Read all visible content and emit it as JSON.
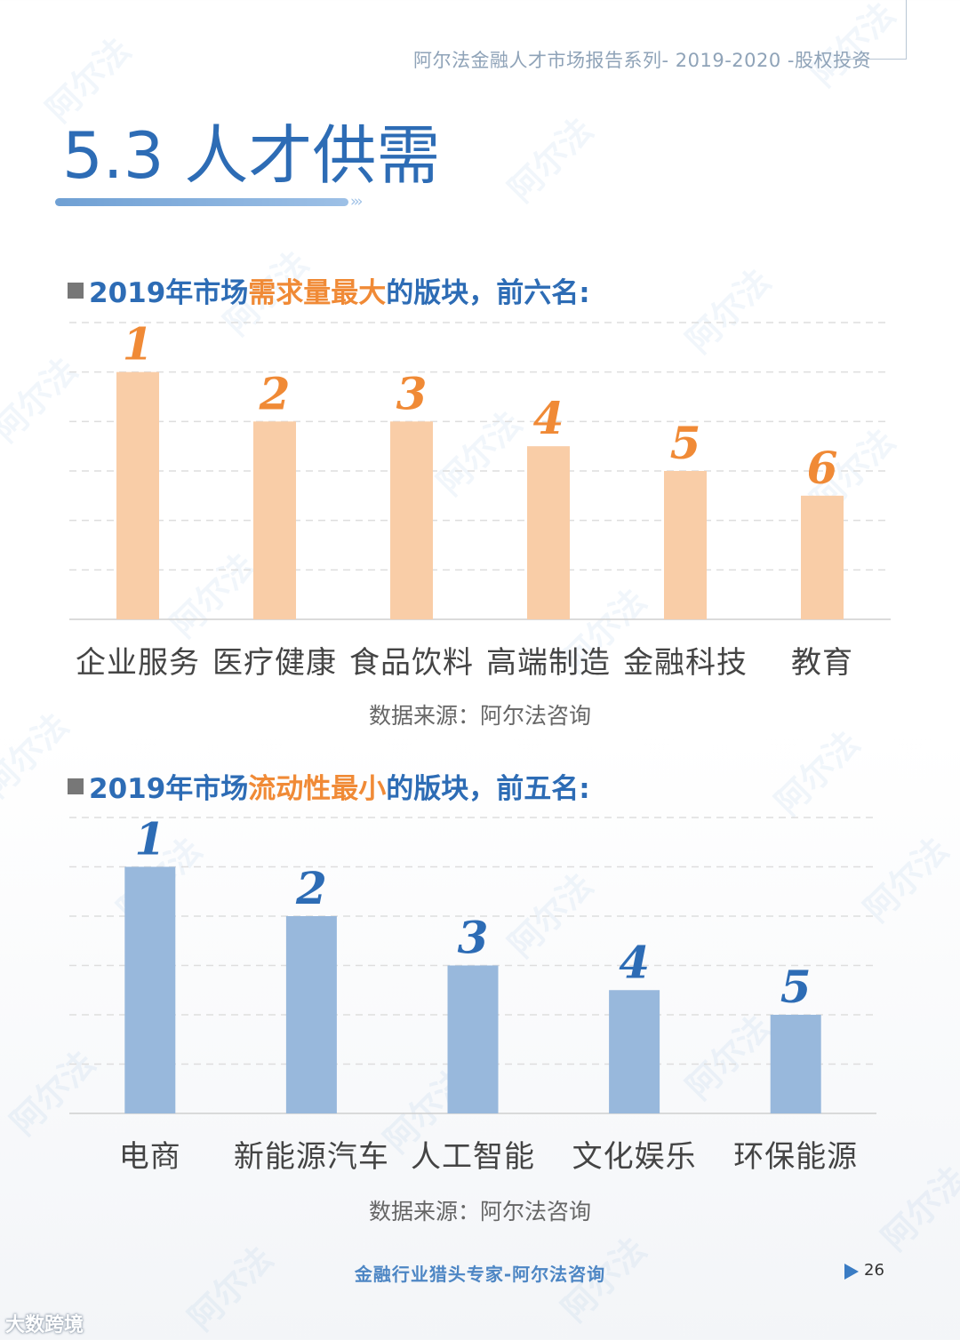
{
  "header": {
    "report_series": "阿尔法金融人才市场报告系列- 2019-2020 -股权投资",
    "page_title": "5.3 人才供需"
  },
  "section1": {
    "title_prefix": "2019年市场",
    "title_highlight": "需求量最大",
    "title_suffix": "的版块，前六名:",
    "source": "数据来源：阿尔法咨询"
  },
  "section2": {
    "title_prefix": "2019年市场",
    "title_highlight": "流动性最小",
    "title_suffix": "的版块，前五名:",
    "source": "数据来源：阿尔法咨询"
  },
  "chart_data": [
    {
      "type": "bar",
      "categories": [
        "企业服务",
        "医疗健康",
        "食品饮料",
        "高端制造",
        "金融科技",
        "教育"
      ],
      "rank_labels": [
        "1",
        "2",
        "3",
        "4",
        "5",
        "6"
      ],
      "values": [
        5,
        4,
        4,
        3.5,
        3,
        2.5
      ],
      "ylim": [
        0,
        6
      ],
      "grid": true,
      "bar_color": "#f9cda7",
      "label_color": "#f08a36"
    },
    {
      "type": "bar",
      "categories": [
        "电商",
        "新能源汽车",
        "人工智能",
        "文化娱乐",
        "环保能源"
      ],
      "rank_labels": [
        "1",
        "2",
        "3",
        "4",
        "5"
      ],
      "values": [
        5,
        4,
        3,
        2.5,
        2
      ],
      "ylim": [
        0,
        6
      ],
      "grid": true,
      "bar_color": "#98b8dc",
      "label_color": "#2d6cb5"
    }
  ],
  "footer": {
    "tagline": "金融行业猎头专家-阿尔法咨询",
    "page_number": "26"
  },
  "brand": "大数跨境"
}
